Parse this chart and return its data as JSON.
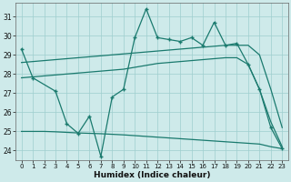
{
  "xlabel": "Humidex (Indice chaleur)",
  "bg_color": "#ceeaea",
  "grid_color": "#9ecece",
  "line_color": "#1a7a6e",
  "xlim": [
    -0.5,
    23.5
  ],
  "ylim": [
    23.5,
    31.7
  ],
  "yticks": [
    24,
    25,
    26,
    27,
    28,
    29,
    30,
    31
  ],
  "xticks": [
    0,
    1,
    2,
    3,
    4,
    5,
    6,
    7,
    8,
    9,
    10,
    11,
    12,
    13,
    14,
    15,
    16,
    17,
    18,
    19,
    20,
    21,
    22,
    23
  ],
  "x_main": [
    0,
    1,
    3,
    4,
    5,
    6,
    7,
    8,
    9,
    10,
    11,
    12,
    13,
    14,
    15,
    16,
    17,
    18,
    19,
    20,
    21,
    22,
    23
  ],
  "y_main": [
    29.3,
    27.8,
    27.1,
    25.4,
    24.9,
    25.8,
    23.7,
    26.8,
    27.2,
    29.9,
    31.4,
    29.9,
    29.8,
    29.7,
    29.9,
    29.5,
    30.7,
    29.5,
    29.6,
    28.5,
    27.2,
    25.2,
    24.1
  ],
  "x_trend": [
    0,
    1,
    2,
    3,
    4,
    5,
    6,
    7,
    8,
    9,
    10,
    11,
    12,
    13,
    14,
    15,
    16,
    17,
    18,
    19,
    20,
    21,
    22,
    23
  ],
  "y_trend_upper": [
    28.6,
    28.65,
    28.7,
    28.75,
    28.8,
    28.85,
    28.9,
    28.95,
    29.0,
    29.05,
    29.1,
    29.15,
    29.2,
    29.25,
    29.3,
    29.35,
    29.4,
    29.45,
    29.5,
    29.5,
    29.5,
    29.0,
    27.2,
    25.2
  ],
  "y_trend_mid": [
    27.8,
    27.85,
    27.9,
    27.95,
    28.0,
    28.05,
    28.1,
    28.15,
    28.2,
    28.25,
    28.35,
    28.45,
    28.55,
    28.6,
    28.65,
    28.7,
    28.75,
    28.8,
    28.85,
    28.85,
    28.5,
    27.2,
    25.5,
    24.2
  ],
  "y_trend_lower": [
    25.0,
    25.0,
    25.0,
    24.98,
    24.95,
    24.92,
    24.9,
    24.88,
    24.85,
    24.82,
    24.78,
    24.74,
    24.7,
    24.66,
    24.62,
    24.58,
    24.54,
    24.5,
    24.46,
    24.42,
    24.38,
    24.34,
    24.2,
    24.1
  ]
}
